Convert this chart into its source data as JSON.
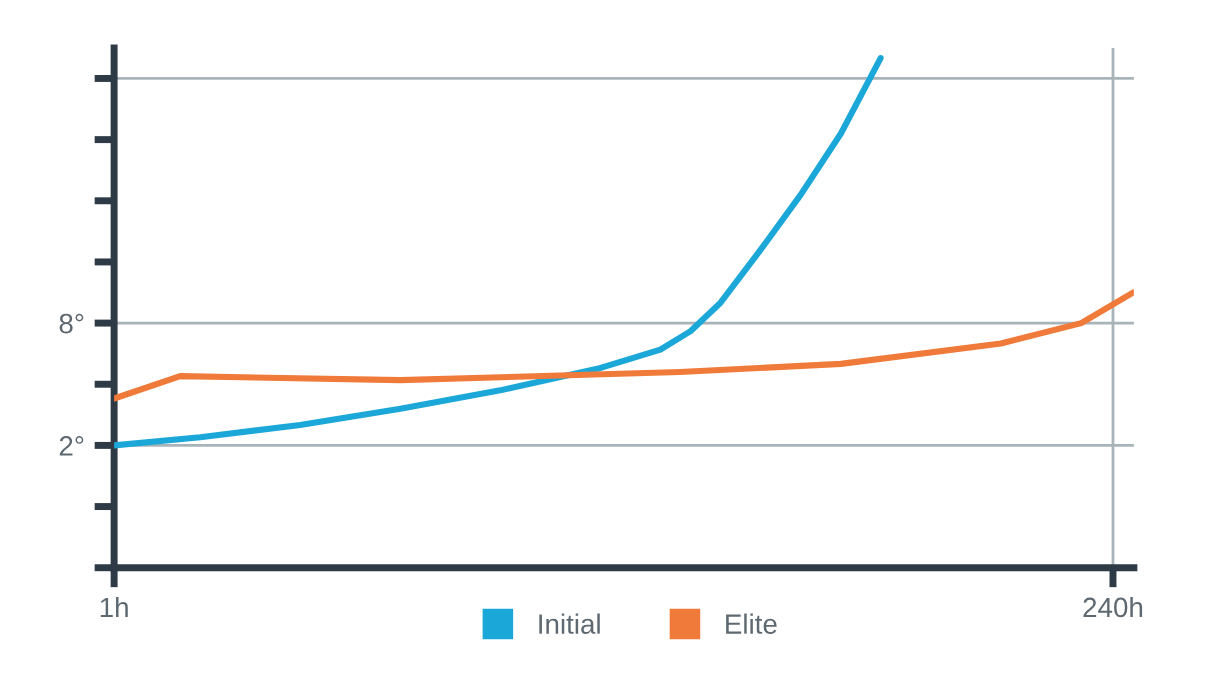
{
  "chart_data": {
    "type": "line",
    "xlim": [
      1,
      245
    ],
    "xticks": [
      {
        "value": 1,
        "label": "1h"
      },
      {
        "value": 240,
        "label": "240h"
      }
    ],
    "ylim": [
      -4,
      21.5
    ],
    "yticks": [
      {
        "value": -4,
        "label": null
      },
      {
        "value": -1,
        "label": null
      },
      {
        "value": 2,
        "label": "2°"
      },
      {
        "value": 5,
        "label": null
      },
      {
        "value": 8,
        "label": "8°"
      },
      {
        "value": 11,
        "label": null
      },
      {
        "value": 14,
        "label": null
      },
      {
        "value": 17,
        "label": null
      },
      {
        "value": 20,
        "label": null
      }
    ],
    "grid": false,
    "legend": "bottom",
    "marker": "none",
    "line_style": "solid",
    "ref_lines": [
      {
        "axis": "y",
        "value": 20,
        "color": "#a9b4ba"
      },
      {
        "axis": "y",
        "value": 8,
        "color": "#a9b4ba"
      },
      {
        "axis": "y",
        "value": 2,
        "color": "#a9b4ba"
      },
      {
        "axis": "x",
        "value": 240,
        "color": "#a9b4ba"
      }
    ],
    "series": [
      {
        "name": "Initial",
        "color": "#1ba8d9",
        "x": [
          1,
          21.6,
          45.5,
          69.5,
          93.4,
          117.4,
          131.7,
          138.9,
          146.1,
          155.7,
          165.3,
          174.9,
          184.4
        ],
        "values": [
          2,
          2.4,
          3.0,
          3.8,
          4.7,
          5.8,
          6.7,
          7.6,
          9.0,
          11.6,
          14.3,
          17.3,
          21
        ]
      },
      {
        "name": "Elite",
        "color": "#f07a3a",
        "x": [
          1,
          16.8,
          69.5,
          136.4,
          174.9,
          213.2,
          232.4,
          244.8
        ],
        "values": [
          4.3,
          5.4,
          5.2,
          5.6,
          6.0,
          7.0,
          8.0,
          9.5
        ]
      }
    ]
  }
}
